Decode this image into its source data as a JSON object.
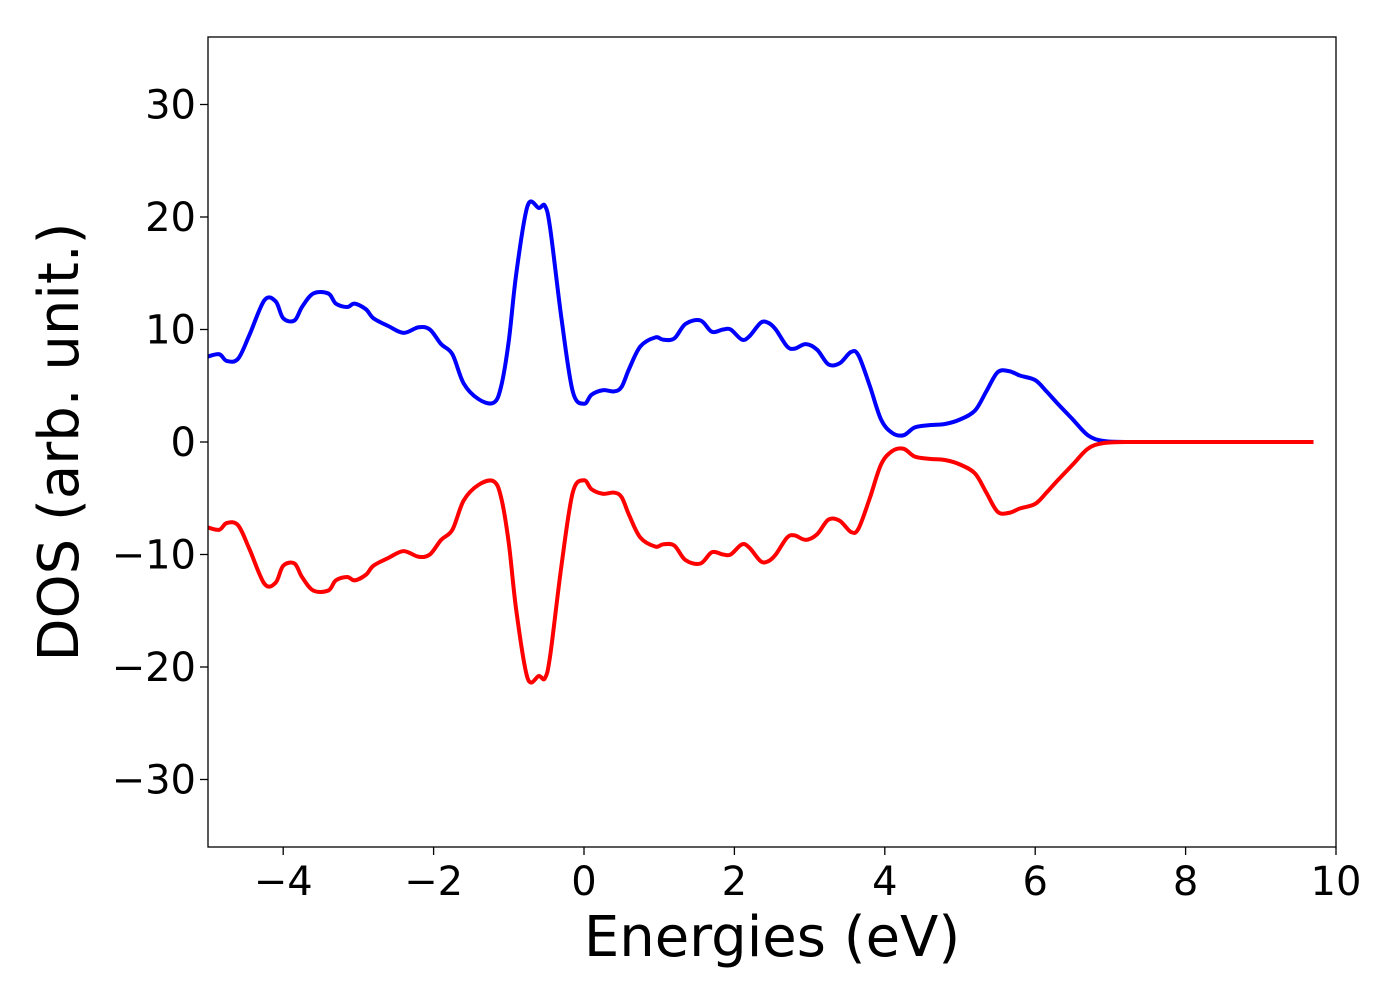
{
  "chart_data": {
    "type": "line",
    "title": "",
    "xlabel": "Energies (eV)",
    "ylabel": "DOS (arb. unit.)",
    "xlim": [
      -5,
      10
    ],
    "ylim": [
      -36,
      36
    ],
    "x_ticks": [
      -4,
      -2,
      0,
      2,
      4,
      6,
      8,
      10
    ],
    "x_tick_labels": [
      "−4",
      "−2",
      "0",
      "2",
      "4",
      "6",
      "8",
      "10"
    ],
    "y_ticks": [
      -30,
      -20,
      -10,
      0,
      10,
      20,
      30
    ],
    "y_tick_labels": [
      "−30",
      "−20",
      "−10",
      "0",
      "10",
      "20",
      "30"
    ],
    "grid": false,
    "legend": "none",
    "series": [
      {
        "color": "#0000ff",
        "x": [
          -5.0,
          -4.85,
          -4.75,
          -4.6,
          -4.45,
          -4.25,
          -4.1,
          -4.0,
          -3.85,
          -3.75,
          -3.6,
          -3.4,
          -3.3,
          -3.15,
          -3.05,
          -2.9,
          -2.8,
          -2.6,
          -2.4,
          -2.2,
          -2.05,
          -1.9,
          -1.75,
          -1.6,
          -1.4,
          -1.2,
          -1.1,
          -1.0,
          -0.9,
          -0.75,
          -0.6,
          -0.52,
          -0.45,
          -0.3,
          -0.15,
          0.0,
          0.1,
          0.25,
          0.4,
          0.5,
          0.6,
          0.75,
          0.95,
          1.05,
          1.2,
          1.35,
          1.55,
          1.7,
          1.85,
          1.95,
          2.1,
          2.2,
          2.35,
          2.45,
          2.55,
          2.7,
          2.8,
          2.95,
          3.1,
          3.25,
          3.4,
          3.55,
          3.65,
          3.8,
          3.95,
          4.1,
          4.25,
          4.4,
          4.6,
          4.8,
          5.0,
          5.2,
          5.35,
          5.5,
          5.65,
          5.8,
          6.0,
          6.15,
          6.3,
          6.5,
          6.7,
          6.9,
          7.2,
          8.0,
          9.0,
          9.7
        ],
        "values": [
          7.6,
          7.8,
          7.2,
          7.4,
          9.5,
          12.6,
          12.5,
          11.0,
          10.8,
          12.0,
          13.2,
          13.2,
          12.3,
          12.0,
          12.3,
          11.8,
          11.0,
          10.3,
          9.7,
          10.2,
          10.0,
          8.7,
          7.8,
          5.2,
          3.8,
          3.5,
          5.0,
          9.0,
          15.0,
          21.0,
          20.8,
          21.0,
          19.0,
          11.0,
          4.5,
          3.4,
          4.2,
          4.6,
          4.5,
          4.9,
          6.5,
          8.5,
          9.3,
          9.1,
          9.2,
          10.5,
          10.8,
          9.8,
          10.0,
          10.0,
          9.1,
          9.4,
          10.6,
          10.6,
          10.0,
          8.5,
          8.3,
          8.7,
          8.2,
          6.9,
          7.0,
          8.0,
          7.7,
          5.0,
          2.0,
          0.8,
          0.6,
          1.3,
          1.5,
          1.6,
          2.0,
          2.8,
          4.5,
          6.2,
          6.3,
          5.9,
          5.5,
          4.5,
          3.4,
          2.0,
          0.6,
          0.1,
          0.0,
          0.0,
          0.0,
          0.0
        ]
      },
      {
        "color": "#ff0000",
        "x": [
          -5.0,
          -4.85,
          -4.75,
          -4.6,
          -4.45,
          -4.25,
          -4.1,
          -4.0,
          -3.85,
          -3.75,
          -3.6,
          -3.4,
          -3.3,
          -3.15,
          -3.05,
          -2.9,
          -2.8,
          -2.6,
          -2.4,
          -2.2,
          -2.05,
          -1.9,
          -1.75,
          -1.6,
          -1.4,
          -1.2,
          -1.1,
          -1.0,
          -0.9,
          -0.75,
          -0.6,
          -0.52,
          -0.45,
          -0.3,
          -0.15,
          0.0,
          0.1,
          0.25,
          0.4,
          0.5,
          0.6,
          0.75,
          0.95,
          1.05,
          1.2,
          1.35,
          1.55,
          1.7,
          1.85,
          1.95,
          2.1,
          2.2,
          2.35,
          2.45,
          2.55,
          2.7,
          2.8,
          2.95,
          3.1,
          3.25,
          3.4,
          3.55,
          3.65,
          3.8,
          3.95,
          4.1,
          4.25,
          4.4,
          4.6,
          4.8,
          5.0,
          5.2,
          5.35,
          5.5,
          5.65,
          5.8,
          6.0,
          6.15,
          6.3,
          6.5,
          6.7,
          6.9,
          7.2,
          8.0,
          9.0,
          9.7
        ],
        "values": [
          -7.6,
          -7.8,
          -7.2,
          -7.4,
          -9.5,
          -12.6,
          -12.5,
          -11.0,
          -10.8,
          -12.0,
          -13.2,
          -13.2,
          -12.3,
          -12.0,
          -12.3,
          -11.8,
          -11.0,
          -10.3,
          -9.7,
          -10.2,
          -10.0,
          -8.7,
          -7.8,
          -5.2,
          -3.8,
          -3.5,
          -5.0,
          -9.0,
          -15.0,
          -21.0,
          -20.8,
          -21.0,
          -19.0,
          -11.0,
          -4.5,
          -3.4,
          -4.2,
          -4.6,
          -4.5,
          -4.9,
          -6.5,
          -8.5,
          -9.3,
          -9.1,
          -9.2,
          -10.5,
          -10.8,
          -9.8,
          -10.0,
          -10.0,
          -9.1,
          -9.4,
          -10.6,
          -10.6,
          -10.0,
          -8.5,
          -8.3,
          -8.7,
          -8.2,
          -6.9,
          -7.0,
          -8.0,
          -7.7,
          -5.0,
          -2.0,
          -0.8,
          -0.6,
          -1.3,
          -1.5,
          -1.6,
          -2.0,
          -2.8,
          -4.5,
          -6.2,
          -6.3,
          -5.9,
          -5.5,
          -4.5,
          -3.4,
          -2.0,
          -0.6,
          -0.1,
          0.0,
          0.0,
          0.0,
          0.0
        ]
      }
    ]
  }
}
